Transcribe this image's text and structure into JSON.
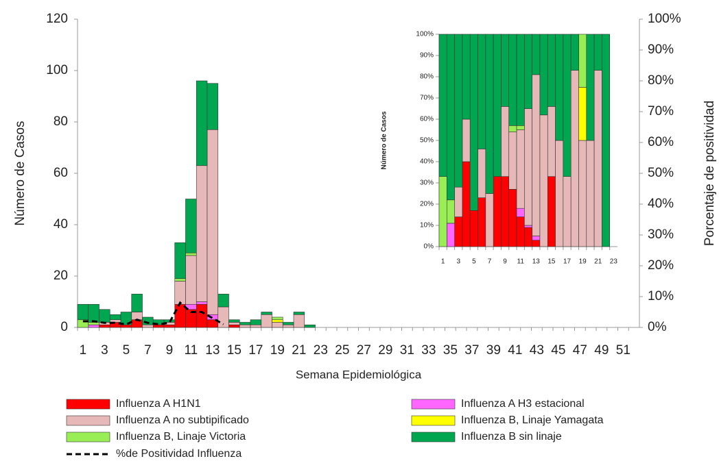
{
  "chart_data": [
    {
      "type": "bar",
      "stacked": true,
      "x_label": "Semana Epidemiológica",
      "y_label": "Número de Casos",
      "y2_label": "Porcentaje  de positividad",
      "categories": [
        "1",
        null,
        "3",
        null,
        "5",
        null,
        "7",
        null,
        "9",
        null,
        "11",
        null,
        "13",
        null,
        "15",
        null,
        "17",
        null,
        "19",
        null,
        "21",
        null,
        "23",
        null,
        "25",
        null,
        "27",
        null,
        "29",
        null,
        "31",
        null,
        "33",
        null,
        "35",
        null,
        "37",
        null,
        "39",
        null,
        "41",
        null,
        "43",
        null,
        "45",
        null,
        "47",
        null,
        "49",
        null,
        "51",
        null
      ],
      "series": [
        {
          "name": "Influenza A H1N1",
          "color": "#ff0000",
          "values": [
            0,
            0,
            1,
            2,
            1,
            3,
            0,
            1,
            1,
            9,
            7,
            9,
            3,
            0,
            1,
            0,
            0,
            0,
            0,
            0,
            0,
            0,
            0,
            0,
            0,
            0,
            0,
            0,
            0,
            0,
            0,
            0,
            0,
            0,
            0,
            0,
            0,
            0,
            0,
            0,
            0,
            0,
            0,
            0,
            0,
            0,
            0,
            0,
            0,
            0,
            0,
            0
          ]
        },
        {
          "name": "Influenza A H3 estacional",
          "color": "#ff66ff",
          "values": [
            0,
            1,
            0,
            0,
            0,
            0,
            0,
            0,
            0,
            0,
            2,
            1,
            2,
            0,
            0,
            0,
            0,
            0,
            0,
            0,
            0,
            0,
            0,
            0,
            0,
            0,
            0,
            0,
            0,
            0,
            0,
            0,
            0,
            0,
            0,
            0,
            0,
            0,
            0,
            0,
            0,
            0,
            0,
            0,
            0,
            0,
            0,
            0,
            0,
            0,
            0,
            0
          ]
        },
        {
          "name": "Influenza A no subtipificado",
          "color": "#e6b8b7",
          "values": [
            0,
            0,
            1,
            1,
            0,
            3,
            1,
            0,
            1,
            9,
            19,
            53,
            72,
            8,
            1,
            1,
            1,
            5,
            2,
            1,
            5,
            0,
            0,
            0,
            0,
            0,
            0,
            0,
            0,
            0,
            0,
            0,
            0,
            0,
            0,
            0,
            0,
            0,
            0,
            0,
            0,
            0,
            0,
            0,
            0,
            0,
            0,
            0,
            0,
            0,
            0,
            0
          ]
        },
        {
          "name": "Influenza B, Linaje Yamagata",
          "color": "#ffff00",
          "values": [
            0,
            0,
            0,
            0,
            0,
            0,
            0,
            0,
            0,
            0,
            0,
            0,
            0,
            0,
            0,
            0,
            0,
            0,
            1,
            0,
            0,
            0,
            0,
            0,
            0,
            0,
            0,
            0,
            0,
            0,
            0,
            0,
            0,
            0,
            0,
            0,
            0,
            0,
            0,
            0,
            0,
            0,
            0,
            0,
            0,
            0,
            0,
            0,
            0,
            0,
            0,
            0
          ]
        },
        {
          "name": "Influenza B, Linaje Victoria",
          "color": "#99ee55",
          "values": [
            3,
            1,
            0,
            0,
            0,
            0,
            0,
            0,
            0,
            1,
            1,
            0,
            0,
            0,
            0,
            0,
            0,
            0,
            1,
            0,
            0,
            0,
            0,
            0,
            0,
            0,
            0,
            0,
            0,
            0,
            0,
            0,
            0,
            0,
            0,
            0,
            0,
            0,
            0,
            0,
            0,
            0,
            0,
            0,
            0,
            0,
            0,
            0,
            0,
            0,
            0,
            0
          ]
        },
        {
          "name": "Influenza B sin linaje",
          "color": "#00a650",
          "values": [
            6,
            7,
            5,
            2,
            5,
            7,
            3,
            2,
            1,
            14,
            21,
            33,
            18,
            5,
            1,
            1,
            2,
            1,
            0,
            1,
            1,
            1,
            0,
            0,
            0,
            0,
            0,
            0,
            0,
            0,
            0,
            0,
            0,
            0,
            0,
            0,
            0,
            0,
            0,
            0,
            0,
            0,
            0,
            0,
            0,
            0,
            0,
            0,
            0,
            0,
            0,
            0
          ]
        },
        {
          "name": "%de Positividad Influenza",
          "color": "#000000",
          "type": "line",
          "dashed": true,
          "axis": "y2",
          "values": [
            2,
            2,
            1.5,
            1.5,
            1,
            2.5,
            1.5,
            1,
            1.5,
            8,
            5,
            5,
            3,
            1,
            null,
            null,
            null,
            null,
            null,
            null,
            null,
            null,
            null,
            null,
            null,
            null,
            null,
            null,
            null,
            null,
            null,
            null,
            null,
            null,
            null,
            null,
            null,
            null,
            null,
            null,
            null,
            null,
            null,
            null,
            null,
            null,
            null,
            null,
            null,
            null,
            null,
            null
          ]
        }
      ],
      "ylim": [
        0,
        120
      ],
      "yticks": [
        0,
        20,
        40,
        60,
        80,
        100,
        120
      ],
      "y2lim": [
        0,
        100
      ],
      "y2ticks": [
        {
          "value": 0,
          "label": "0%"
        },
        {
          "value": 10,
          "label": "10%"
        },
        {
          "value": 20,
          "label": "20%"
        },
        {
          "value": 30,
          "label": "30%"
        },
        {
          "value": 40,
          "label": "40%"
        },
        {
          "value": 50,
          "label": "50%"
        },
        {
          "value": 60,
          "label": "60%"
        },
        {
          "value": 70,
          "label": "70%"
        },
        {
          "value": 80,
          "label": "80%"
        },
        {
          "value": 90,
          "label": "90%"
        },
        {
          "value": 100,
          "label": "100%"
        }
      ],
      "legend": "bottom"
    },
    {
      "type": "bar",
      "stacked": true,
      "y_label": "Número de Casos",
      "categories": [
        "1",
        null,
        "3",
        null,
        "5",
        null,
        "7",
        null,
        "9",
        null,
        "11",
        null,
        "13",
        null,
        "15",
        null,
        "17",
        null,
        "19",
        null,
        "21",
        null,
        "23"
      ],
      "series": [
        {
          "color": "#ff0000",
          "values": [
            0,
            0,
            14,
            40,
            17,
            23,
            0,
            33,
            33,
            27,
            14,
            9,
            3,
            0,
            33,
            0,
            0,
            0,
            0,
            0,
            0,
            0,
            0
          ]
        },
        {
          "color": "#ff66ff",
          "values": [
            0,
            11,
            0,
            0,
            0,
            0,
            0,
            0,
            0,
            0,
            4,
            1,
            2,
            0,
            0,
            0,
            0,
            0,
            0,
            0,
            0,
            0,
            0
          ]
        },
        {
          "color": "#e6b8b7",
          "values": [
            0,
            0,
            14,
            20,
            0,
            23,
            25,
            0,
            33,
            27,
            37,
            55,
            76,
            62,
            33,
            50,
            33,
            83,
            50,
            50,
            83,
            0,
            0
          ]
        },
        {
          "color": "#ffff00",
          "values": [
            0,
            0,
            0,
            0,
            0,
            0,
            0,
            0,
            0,
            0,
            0,
            0,
            0,
            0,
            0,
            0,
            0,
            0,
            25,
            0,
            0,
            0,
            0
          ]
        },
        {
          "color": "#99ee55",
          "values": [
            33,
            11,
            0,
            0,
            0,
            0,
            0,
            0,
            0,
            3,
            2,
            0,
            0,
            0,
            0,
            0,
            0,
            0,
            25,
            0,
            0,
            0,
            0
          ]
        },
        {
          "color": "#00a650",
          "values": [
            67,
            78,
            72,
            40,
            83,
            54,
            75,
            67,
            34,
            43,
            43,
            35,
            19,
            38,
            34,
            50,
            67,
            17,
            0,
            50,
            17,
            100,
            0
          ]
        }
      ],
      "ylim": [
        0,
        100
      ],
      "yticks": [
        {
          "value": 0,
          "label": "0%"
        },
        {
          "value": 10,
          "label": "10%"
        },
        {
          "value": 20,
          "label": "20%"
        },
        {
          "value": 30,
          "label": "30%"
        },
        {
          "value": 40,
          "label": "40%"
        },
        {
          "value": 50,
          "label": "50%"
        },
        {
          "value": 60,
          "label": "60%"
        },
        {
          "value": 70,
          "label": "70%"
        },
        {
          "value": 80,
          "label": "80%"
        },
        {
          "value": 90,
          "label": "90%"
        },
        {
          "value": 100,
          "label": "100%"
        }
      ]
    }
  ]
}
